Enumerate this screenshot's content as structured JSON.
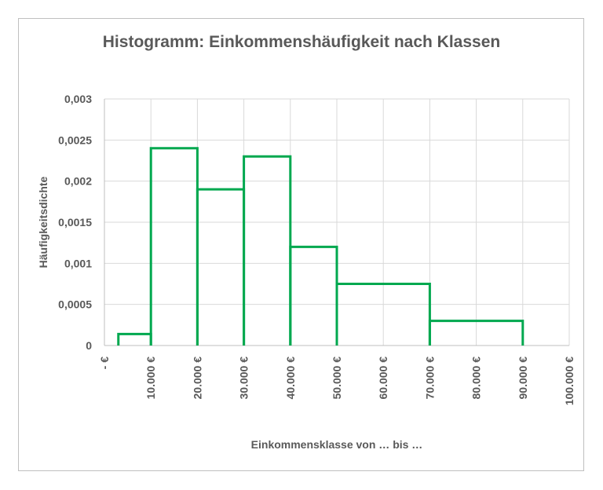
{
  "chart_data": {
    "type": "bar",
    "subtype": "histogram",
    "title": "Histogramm: Einkommenshäufigkeit nach Klassen",
    "xlabel": "Einkommensklasse von … bis …",
    "ylabel": "Häufigkeitsdichte",
    "xlim": [
      0,
      100000
    ],
    "ylim": [
      0,
      0.003
    ],
    "grid": true,
    "x_ticks": [
      0,
      10000,
      20000,
      30000,
      40000,
      50000,
      60000,
      70000,
      80000,
      90000,
      100000
    ],
    "x_tick_labels": [
      "- €",
      "10.000 €",
      "20.000 €",
      "30.000 €",
      "40.000 €",
      "50.000 €",
      "60.000 €",
      "70.000 €",
      "80.000 €",
      "90.000 €",
      "100.000 €"
    ],
    "y_ticks": [
      0,
      0.0005,
      0.001,
      0.0015,
      0.002,
      0.0025,
      0.003
    ],
    "y_tick_labels": [
      "0",
      "0,0005",
      "0,001",
      "0,0015",
      "0,002",
      "0,0025",
      "0,003"
    ],
    "bins": [
      {
        "from": 3000,
        "to": 10000,
        "density": 0.00014
      },
      {
        "from": 10000,
        "to": 20000,
        "density": 0.0024
      },
      {
        "from": 20000,
        "to": 30000,
        "density": 0.0019
      },
      {
        "from": 30000,
        "to": 40000,
        "density": 0.0023
      },
      {
        "from": 40000,
        "to": 50000,
        "density": 0.0012
      },
      {
        "from": 50000,
        "to": 70000,
        "density": 0.00075
      },
      {
        "from": 70000,
        "to": 90000,
        "density": 0.0003
      }
    ],
    "colors": {
      "outline": "#00a84f",
      "grid": "#d9d9d9",
      "axis": "#bfbfbf",
      "text": "#595959"
    }
  }
}
